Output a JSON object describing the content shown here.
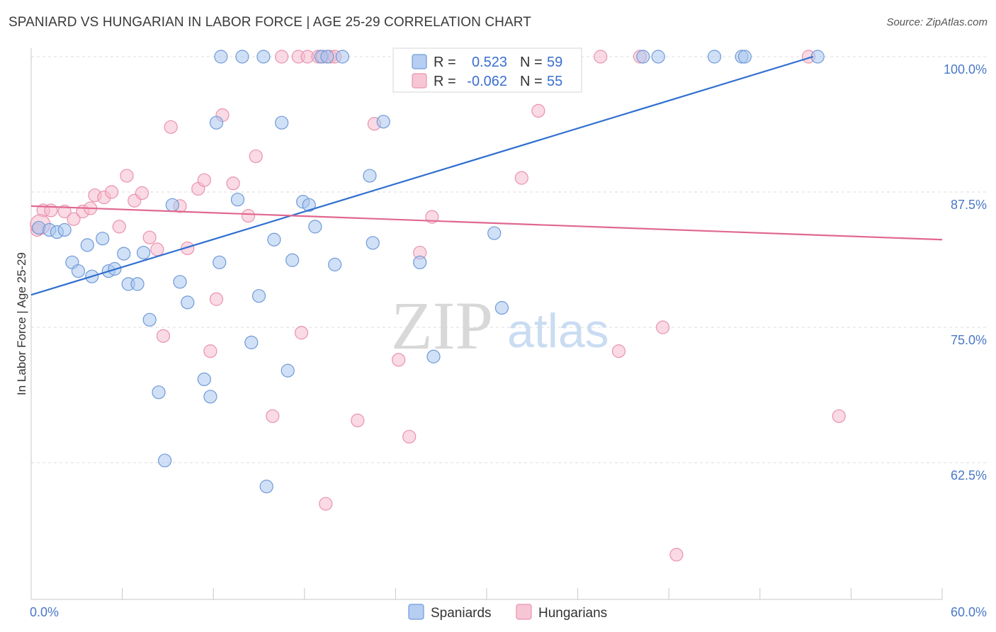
{
  "title": "SPANIARD VS HUNGARIAN IN LABOR FORCE | AGE 25-29 CORRELATION CHART",
  "source": "Source: ZipAtlas.com",
  "colors": {
    "blue_fill": "#a9c6ef",
    "blue_stroke": "#6f9ad8",
    "blue_line": "#2f6fd0",
    "pink_fill": "#f6bccd",
    "pink_stroke": "#e993ad",
    "pink_line": "#e0688f",
    "grid": "#dcdcdc",
    "axis_label": "#4a78c8"
  },
  "legend": {
    "rows": [
      {
        "r_label": "R =",
        "r_value": "0.523",
        "n_label": "N =",
        "n_value": "59"
      },
      {
        "r_label": "R =",
        "r_value": "-0.062",
        "n_label": "N =",
        "n_value": "55"
      }
    ]
  },
  "bottom_legend": [
    "Spaniards",
    "Hungarians"
  ],
  "watermark": {
    "zip": "ZIP",
    "atlas": "atlas"
  },
  "chart_data": {
    "type": "scatter",
    "title": "SPANIARD VS HUNGARIAN IN LABOR FORCE | AGE 25-29 CORRELATION CHART",
    "xlabel": "",
    "ylabel": "In Labor Force | Age 25-29",
    "xlim": [
      0,
      60
    ],
    "ylim": [
      50,
      102
    ],
    "x_tick_labels": [
      "0.0%",
      "60.0%"
    ],
    "y_ticks": [
      62.5,
      75.0,
      87.5,
      100.0
    ],
    "y_tick_labels": [
      "62.5%",
      "75.0%",
      "87.5%",
      "100.0%"
    ],
    "grid": true,
    "legend_position": "top-center",
    "series": [
      {
        "name": "Spaniards",
        "r": 0.523,
        "n": 59,
        "trend": {
          "x": [
            0.0,
            51.5
          ],
          "y": [
            78.0,
            100.0
          ]
        },
        "points": [
          [
            0.5,
            84.2
          ],
          [
            1.2,
            84.0
          ],
          [
            1.7,
            83.8
          ],
          [
            2.2,
            84.0
          ],
          [
            2.7,
            81.0
          ],
          [
            3.1,
            80.2
          ],
          [
            3.7,
            82.6
          ],
          [
            4.0,
            79.7
          ],
          [
            4.7,
            83.2
          ],
          [
            5.1,
            80.2
          ],
          [
            5.5,
            80.4
          ],
          [
            6.1,
            81.8
          ],
          [
            6.4,
            79.0
          ],
          [
            7.0,
            79.0
          ],
          [
            7.4,
            81.9
          ],
          [
            7.8,
            75.7
          ],
          [
            8.4,
            69.0
          ],
          [
            8.8,
            62.7
          ],
          [
            9.3,
            86.3
          ],
          [
            9.8,
            79.2
          ],
          [
            10.3,
            77.3
          ],
          [
            11.4,
            70.2
          ],
          [
            11.8,
            68.6
          ],
          [
            12.4,
            81.0
          ],
          [
            12.5,
            100.0
          ],
          [
            12.2,
            93.9
          ],
          [
            13.6,
            86.8
          ],
          [
            13.9,
            100.0
          ],
          [
            14.5,
            73.6
          ],
          [
            15.0,
            77.9
          ],
          [
            15.3,
            100.0
          ],
          [
            15.5,
            60.3
          ],
          [
            16.0,
            83.1
          ],
          [
            16.5,
            93.9
          ],
          [
            16.9,
            71.0
          ],
          [
            17.2,
            81.2
          ],
          [
            17.9,
            86.6
          ],
          [
            18.3,
            86.3
          ],
          [
            18.7,
            84.3
          ],
          [
            19.1,
            100.0
          ],
          [
            19.5,
            100.0
          ],
          [
            20.0,
            80.8
          ],
          [
            20.5,
            100.0
          ],
          [
            22.3,
            89.0
          ],
          [
            22.5,
            82.8
          ],
          [
            23.2,
            94.0
          ],
          [
            24.8,
            100.0
          ],
          [
            25.6,
            81.0
          ],
          [
            26.5,
            72.3
          ],
          [
            28.3,
            100.0
          ],
          [
            30.5,
            83.7
          ],
          [
            31.0,
            76.8
          ],
          [
            32.0,
            100.0
          ],
          [
            40.3,
            100.0
          ],
          [
            41.3,
            100.0
          ],
          [
            45.0,
            100.0
          ],
          [
            46.8,
            100.0
          ],
          [
            47.0,
            100.0
          ],
          [
            51.8,
            100.0
          ]
        ]
      },
      {
        "name": "Hungarians",
        "r": -0.062,
        "n": 55,
        "trend": {
          "x": [
            0.0,
            60.0
          ],
          "y": [
            86.2,
            83.1
          ]
        },
        "points": [
          [
            0.4,
            84.0
          ],
          [
            0.8,
            85.8
          ],
          [
            1.3,
            85.8
          ],
          [
            2.2,
            85.7
          ],
          [
            2.8,
            85.0
          ],
          [
            3.4,
            85.7
          ],
          [
            3.9,
            86.0
          ],
          [
            4.2,
            87.2
          ],
          [
            4.8,
            87.0
          ],
          [
            5.3,
            87.5
          ],
          [
            5.8,
            84.3
          ],
          [
            6.3,
            89.0
          ],
          [
            6.8,
            86.7
          ],
          [
            7.3,
            87.4
          ],
          [
            7.8,
            83.3
          ],
          [
            8.3,
            82.2
          ],
          [
            8.7,
            74.2
          ],
          [
            9.2,
            93.5
          ],
          [
            9.8,
            86.2
          ],
          [
            10.3,
            82.3
          ],
          [
            11.0,
            87.8
          ],
          [
            11.4,
            88.6
          ],
          [
            11.8,
            72.8
          ],
          [
            12.2,
            77.6
          ],
          [
            12.6,
            94.6
          ],
          [
            13.3,
            88.3
          ],
          [
            14.3,
            85.3
          ],
          [
            14.8,
            90.8
          ],
          [
            15.9,
            66.8
          ],
          [
            16.5,
            100.0
          ],
          [
            17.6,
            100.0
          ],
          [
            17.8,
            74.5
          ],
          [
            18.2,
            100.0
          ],
          [
            18.9,
            100.0
          ],
          [
            19.2,
            100.0
          ],
          [
            19.4,
            58.7
          ],
          [
            19.7,
            100.0
          ],
          [
            20.0,
            100.0
          ],
          [
            21.5,
            66.4
          ],
          [
            22.6,
            93.8
          ],
          [
            24.2,
            72.0
          ],
          [
            24.9,
            64.9
          ],
          [
            25.6,
            81.9
          ],
          [
            26.4,
            85.2
          ],
          [
            28.9,
            100.0
          ],
          [
            32.3,
            88.8
          ],
          [
            33.4,
            95.0
          ],
          [
            37.5,
            100.0
          ],
          [
            38.7,
            72.8
          ],
          [
            40.1,
            100.0
          ],
          [
            41.6,
            75.0
          ],
          [
            42.5,
            54.0
          ],
          [
            51.2,
            100.0
          ],
          [
            53.2,
            66.8
          ],
          [
            0.6,
            84.5
          ]
        ]
      }
    ]
  }
}
